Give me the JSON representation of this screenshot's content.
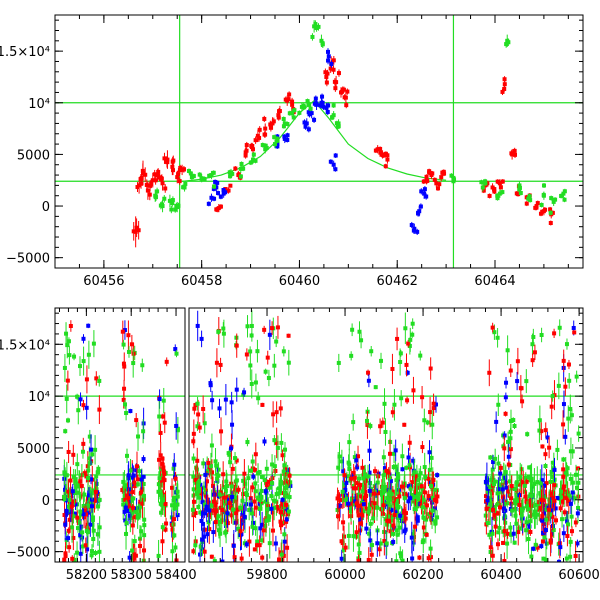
{
  "chart_data": [
    {
      "type": "scatter",
      "title": "",
      "xlabel": "",
      "ylabel": "",
      "xlim": [
        60455,
        60465.8
      ],
      "ylim": [
        -6000,
        18500
      ],
      "grid": false,
      "x_ticks": [
        {
          "v": 60456,
          "label": "60456"
        },
        {
          "v": 60458,
          "label": "60458"
        },
        {
          "v": 60460,
          "label": "60460"
        },
        {
          "v": 60462,
          "label": "60462"
        },
        {
          "v": 60464,
          "label": "60464"
        }
      ],
      "y_ticks": [
        {
          "v": -5000,
          "label": "−5000"
        },
        {
          "v": 0,
          "label": "0"
        },
        {
          "v": 5000,
          "label": "5000"
        },
        {
          "v": 10000,
          "label": "10⁴"
        },
        {
          "v": 15000,
          "label": "1.5×10⁴"
        }
      ],
      "hlines": [
        10000,
        2400
      ],
      "vlines": [
        60457.55,
        60463.15
      ],
      "model_curve": {
        "color": "#22dd22",
        "x": [
          60457.6,
          60458.0,
          60458.4,
          60458.8,
          60459.2,
          60459.6,
          60460.0,
          60460.3,
          60460.6,
          60461.0,
          60461.4,
          60461.8,
          60462.2,
          60462.6,
          60463.0
        ],
        "y": [
          2400,
          2600,
          3000,
          3700,
          4800,
          6600,
          9000,
          10200,
          8500,
          6000,
          4600,
          3700,
          3100,
          2700,
          2500
        ]
      },
      "series": [
        {
          "color": "#ff0000",
          "x": [
            60456.65,
            60456.72,
            60456.8,
            60456.9,
            60457.0,
            60457.1,
            60457.2,
            60457.3,
            60457.4,
            60457.5,
            60457.6,
            60458.35,
            60458.55,
            60458.75,
            60458.9,
            60459.05,
            60459.15,
            60459.3,
            60459.45,
            60459.6,
            60459.75,
            60459.85,
            60460.55,
            60460.65,
            60460.75,
            60460.85,
            60460.95,
            60461.6,
            60461.7,
            60461.8,
            60462.6,
            60462.7,
            60462.8,
            60462.9,
            60463.8,
            60463.95,
            60464.1,
            60464.2,
            60464.35,
            60464.5,
            60464.7,
            60464.85,
            60465.0,
            60465.15
          ],
          "y": [
            -2500,
            2000,
            3200,
            1500,
            2500,
            3000,
            2200,
            4500,
            3800,
            2800,
            3500,
            -200,
            1500,
            3000,
            5200,
            5500,
            6800,
            7500,
            8000,
            9200,
            10200,
            9800,
            12500,
            13800,
            12000,
            11000,
            10500,
            5500,
            5000,
            4500,
            2500,
            3000,
            2200,
            2800,
            2000,
            1800,
            2200,
            11800,
            5000,
            1800,
            800,
            0,
            -500,
            -800
          ],
          "err": [
            1500,
            800,
            1200,
            900,
            700,
            600,
            700,
            900,
            800,
            600,
            500,
            400,
            300,
            400,
            500,
            500,
            600,
            500,
            600,
            500,
            500,
            600,
            600,
            700,
            600,
            500,
            500,
            400,
            400,
            400,
            400,
            400,
            400,
            400,
            400,
            400,
            400,
            500,
            500,
            400,
            400,
            400,
            400,
            400
          ]
        },
        {
          "color": "#0000ff",
          "x": [
            60458.2,
            60458.3,
            60458.45,
            60459.55,
            60459.7,
            60460.15,
            60460.25,
            60460.35,
            60460.45,
            60460.55,
            60460.6,
            60460.7,
            60462.35,
            60462.45,
            60462.55
          ],
          "y": [
            800,
            1800,
            1200,
            6000,
            6500,
            8000,
            9000,
            9800,
            10000,
            9500,
            14500,
            4000,
            -2200,
            -500,
            1200
          ],
          "err": [
            400,
            400,
            400,
            400,
            400,
            500,
            500,
            500,
            500,
            500,
            600,
            400,
            500,
            500,
            500
          ]
        },
        {
          "color": "#22dd22",
          "x": [
            60457.05,
            60457.2,
            60457.35,
            60457.5,
            60457.65,
            60457.8,
            60458.0,
            60458.2,
            60458.6,
            60458.8,
            60459.05,
            60459.3,
            60459.5,
            60459.7,
            60459.85,
            60460.05,
            60460.2,
            60460.3,
            60460.45,
            60460.7,
            60460.8,
            60463.15,
            60463.75,
            60464.1,
            60464.25,
            60464.5,
            60464.7,
            60465.0,
            60465.2,
            60465.4
          ],
          "y": [
            1000,
            0,
            500,
            -100,
            1800,
            2800,
            2700,
            3000,
            3200,
            3600,
            4500,
            5500,
            6000,
            8000,
            9000,
            9600,
            9800,
            17400,
            16000,
            8800,
            8000,
            2400,
            1800,
            1200,
            16000,
            2000,
            800,
            1000,
            400,
            1200
          ],
          "err": [
            600,
            600,
            600,
            500,
            400,
            400,
            400,
            400,
            400,
            400,
            400,
            400,
            400,
            400,
            400,
            400,
            400,
            600,
            600,
            400,
            400,
            400,
            400,
            400,
            600,
            400,
            400,
            400,
            400,
            400
          ]
        }
      ]
    },
    {
      "type": "scatter",
      "title": "",
      "xlabel": "",
      "ylabel": "",
      "broken_x_axis": true,
      "ylim": [
        -6000,
        18500
      ],
      "grid": false,
      "segments": [
        {
          "xlim": [
            58130,
            58420
          ],
          "ticks": [
            {
              "v": 58200,
              "label": "58200"
            },
            {
              "v": 58300,
              "label": "58300"
            },
            {
              "v": 58400,
              "label": "58400"
            }
          ],
          "clusters": [
            [
              58150,
              58230
            ],
            [
              58280,
              58330
            ],
            [
              58360,
              58380
            ],
            [
              58390,
              58405
            ]
          ]
        },
        {
          "xlim": [
            59600,
            60610
          ],
          "ticks": [
            {
              "v": 59800,
              "label": "59800"
            },
            {
              "v": 60000,
              "label": "60000"
            },
            {
              "v": 60200,
              "label": "60200"
            },
            {
              "v": 60400,
              "label": "60400"
            },
            {
              "v": 60600,
              "label": "60600"
            }
          ],
          "clusters": [
            [
              59610,
              59860
            ],
            [
              59980,
              60240
            ],
            [
              60360,
              60600
            ]
          ]
        }
      ],
      "y_ticks": [
        {
          "v": -5000,
          "label": "−5000"
        },
        {
          "v": 0,
          "label": "0"
        },
        {
          "v": 5000,
          "label": "5000"
        },
        {
          "v": 10000,
          "label": "10⁴"
        },
        {
          "v": 15000,
          "label": "1.5×10⁴"
        }
      ],
      "hlines": [
        10000,
        2400
      ],
      "series": [
        {
          "color": "#ff0000"
        },
        {
          "color": "#0000ff"
        },
        {
          "color": "#22dd22"
        }
      ]
    }
  ]
}
